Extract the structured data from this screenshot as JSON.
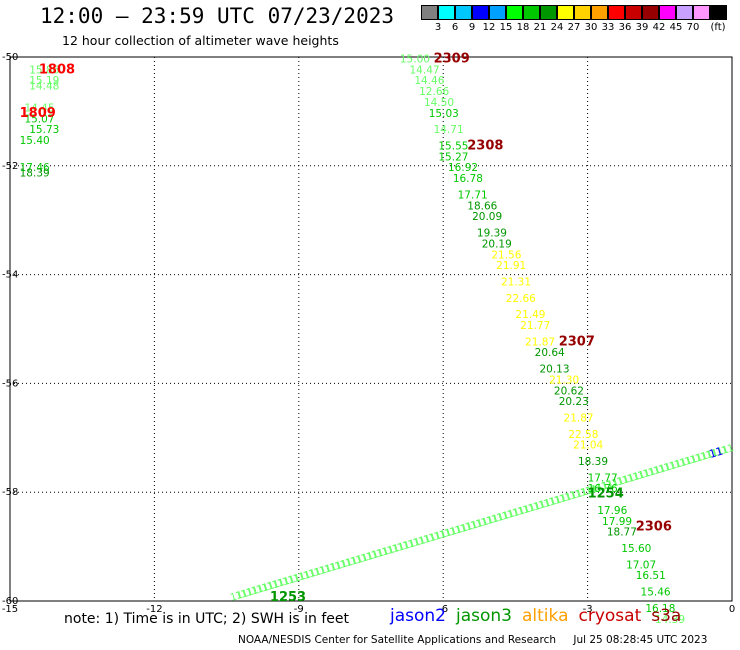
{
  "title": "12:00 — 23:59 UTC 07/23/2023",
  "subtitle": "12 hour collection of altimeter wave heights",
  "scale": {
    "colors": [
      "#808080",
      "#00ffff",
      "#00c8ff",
      "#0000ff",
      "#00a0ff",
      "#00ff00",
      "#00c800",
      "#009600",
      "#ffff00",
      "#ffd200",
      "#ffa000",
      "#ff0000",
      "#c80000",
      "#960000",
      "#ff00ff",
      "#c8a0ff",
      "#ff96ff",
      "#000000"
    ],
    "labels": [
      "3",
      "6",
      "9",
      "12",
      "15",
      "18",
      "21",
      "24",
      "27",
      "30",
      "33",
      "36",
      "39",
      "42",
      "45",
      "70"
    ],
    "unit": "(ft)"
  },
  "map": {
    "lon_ticks": [
      "-15",
      "-12",
      "-9",
      "-6",
      "-3",
      "0"
    ],
    "lat_ticks": [
      "-50",
      "-52",
      "-54",
      "-56",
      "-58",
      "-60"
    ],
    "xlim": [
      -15,
      0
    ],
    "ylim": [
      -60,
      -50
    ]
  },
  "tracks": {
    "nw_fragment": [
      {
        "lon": -14.6,
        "lat": -50.3,
        "v": "15.86",
        "c": "#66ff66"
      },
      {
        "lon": -14.6,
        "lat": -50.5,
        "v": "15.19",
        "c": "#66ff66"
      },
      {
        "lon": -14.6,
        "lat": -50.6,
        "v": "14.48",
        "c": "#66ff66"
      },
      {
        "lon": -14.7,
        "lat": -51.0,
        "v": "14.45",
        "c": "#66ff66"
      },
      {
        "lon": -14.7,
        "lat": -51.2,
        "v": "15.07",
        "c": "#00c800"
      },
      {
        "lon": -14.6,
        "lat": -51.4,
        "v": "15.73",
        "c": "#00c800"
      },
      {
        "lon": -14.8,
        "lat": -51.6,
        "v": "15.40",
        "c": "#00c800"
      },
      {
        "lon": -14.8,
        "lat": -52.1,
        "v": "17.46",
        "c": "#00c800"
      },
      {
        "lon": -14.8,
        "lat": -52.2,
        "v": "18.39",
        "c": "#009600"
      }
    ],
    "main": [
      {
        "lon": -6.9,
        "lat": -50.1,
        "v": "15.00",
        "c": "#66ff66"
      },
      {
        "lon": -6.7,
        "lat": -50.3,
        "v": "14.47",
        "c": "#66ff66"
      },
      {
        "lon": -6.6,
        "lat": -50.5,
        "v": "14.46",
        "c": "#66ff66"
      },
      {
        "lon": -6.5,
        "lat": -50.7,
        "v": "12.66",
        "c": "#66ff66"
      },
      {
        "lon": -6.4,
        "lat": -50.9,
        "v": "14.50",
        "c": "#66ff66"
      },
      {
        "lon": -6.3,
        "lat": -51.1,
        "v": "15.03",
        "c": "#00c800"
      },
      {
        "lon": -6.2,
        "lat": -51.4,
        "v": "14.71",
        "c": "#66ff66"
      },
      {
        "lon": -6.1,
        "lat": -51.7,
        "v": "15.55",
        "c": "#00c800"
      },
      {
        "lon": -6.1,
        "lat": -51.9,
        "v": "15.27",
        "c": "#00c800"
      },
      {
        "lon": -5.9,
        "lat": -52.1,
        "v": "16.92",
        "c": "#00c800"
      },
      {
        "lon": -5.8,
        "lat": -52.3,
        "v": "16.78",
        "c": "#00c800"
      },
      {
        "lon": -5.7,
        "lat": -52.6,
        "v": "17.71",
        "c": "#00c800"
      },
      {
        "lon": -5.5,
        "lat": -52.8,
        "v": "18.66",
        "c": "#009600"
      },
      {
        "lon": -5.4,
        "lat": -53.0,
        "v": "20.09",
        "c": "#009600"
      },
      {
        "lon": -5.3,
        "lat": -53.3,
        "v": "19.39",
        "c": "#009600"
      },
      {
        "lon": -5.2,
        "lat": -53.5,
        "v": "20.19",
        "c": "#009600"
      },
      {
        "lon": -5.0,
        "lat": -53.7,
        "v": "21.56",
        "c": "#ffff00"
      },
      {
        "lon": -4.9,
        "lat": -53.9,
        "v": "21.91",
        "c": "#ffff00"
      },
      {
        "lon": -4.8,
        "lat": -54.2,
        "v": "21.31",
        "c": "#ffff00"
      },
      {
        "lon": -4.7,
        "lat": -54.5,
        "v": "22.66",
        "c": "#ffff00"
      },
      {
        "lon": -4.5,
        "lat": -54.8,
        "v": "21.49",
        "c": "#ffff00"
      },
      {
        "lon": -4.4,
        "lat": -55.0,
        "v": "21.77",
        "c": "#ffff00"
      },
      {
        "lon": -4.3,
        "lat": -55.3,
        "v": "21.87",
        "c": "#ffff00"
      },
      {
        "lon": -4.1,
        "lat": -55.5,
        "v": "20.64",
        "c": "#009600"
      },
      {
        "lon": -4.0,
        "lat": -55.8,
        "v": "20.13",
        "c": "#009600"
      },
      {
        "lon": -3.8,
        "lat": -56.0,
        "v": "21.30",
        "c": "#ffff00"
      },
      {
        "lon": -3.7,
        "lat": -56.2,
        "v": "20.62",
        "c": "#009600"
      },
      {
        "lon": -3.6,
        "lat": -56.4,
        "v": "20.23",
        "c": "#009600"
      },
      {
        "lon": -3.5,
        "lat": -56.7,
        "v": "21.87",
        "c": "#ffff00"
      },
      {
        "lon": -3.4,
        "lat": -57.0,
        "v": "22.58",
        "c": "#ffff00"
      },
      {
        "lon": -3.3,
        "lat": -57.2,
        "v": "21.04",
        "c": "#ffff00"
      },
      {
        "lon": -3.2,
        "lat": -57.5,
        "v": "18.39",
        "c": "#009600"
      },
      {
        "lon": -3.0,
        "lat": -57.8,
        "v": "17.77",
        "c": "#00c800"
      },
      {
        "lon": -3.0,
        "lat": -58.0,
        "v": "16.76",
        "c": "#00c800"
      },
      {
        "lon": -2.8,
        "lat": -58.4,
        "v": "17.96",
        "c": "#00c800"
      },
      {
        "lon": -2.7,
        "lat": -58.6,
        "v": "17.99",
        "c": "#00c800"
      },
      {
        "lon": -2.6,
        "lat": -58.8,
        "v": "18.77",
        "c": "#009600"
      },
      {
        "lon": -2.3,
        "lat": -59.1,
        "v": "15.60",
        "c": "#00c800"
      },
      {
        "lon": -2.2,
        "lat": -59.4,
        "v": "17.07",
        "c": "#00c800"
      },
      {
        "lon": -2.0,
        "lat": -59.6,
        "v": "16.51",
        "c": "#00c800"
      },
      {
        "lon": -1.9,
        "lat": -59.9,
        "v": "15.46",
        "c": "#00c800"
      },
      {
        "lon": -1.8,
        "lat": -60.2,
        "v": "16.18",
        "c": "#00c800"
      },
      {
        "lon": -1.6,
        "lat": -60.4,
        "v": "14.39",
        "c": "#66ff66"
      }
    ]
  },
  "time_labels": [
    {
      "lon": -14.4,
      "lat": -50.3,
      "t": "1808",
      "c": "#ff0000"
    },
    {
      "lon": -14.8,
      "lat": -51.1,
      "t": "1809",
      "c": "#ff0000"
    },
    {
      "lon": -6.2,
      "lat": -50.1,
      "t": "2309",
      "c": "#960000"
    },
    {
      "lon": -5.5,
      "lat": -51.7,
      "t": "2308",
      "c": "#960000"
    },
    {
      "lon": -3.6,
      "lat": -55.3,
      "t": "2307",
      "c": "#960000"
    },
    {
      "lon": -2.0,
      "lat": -58.7,
      "t": "2306",
      "c": "#960000"
    },
    {
      "lon": -3.0,
      "lat": -58.1,
      "t": "1254",
      "c": "#009600"
    },
    {
      "lon": -9.6,
      "lat": -60.0,
      "t": "1253",
      "c": "#009600"
    }
  ],
  "oblique_track": {
    "start_lon": -10.4,
    "start_lat": -60.0,
    "end_lon": -0.2,
    "end_lat": -57.3,
    "text": "11",
    "c": "#66ff66",
    "end_text": "11",
    "end_c": "#0000ff"
  },
  "note": "note: 1) Time is in UTC; 2) SWH is in feet",
  "satellites": [
    {
      "name": "jason2",
      "c": "#0000ff"
    },
    {
      "name": "jason3",
      "c": "#009600"
    },
    {
      "name": "altika",
      "c": "#ffa000"
    },
    {
      "name": "cryosat",
      "c": "#c80000"
    },
    {
      "name": "s3a",
      "c": "#960000"
    }
  ],
  "credit": {
    "org": "NOAA/NESDIS Center for Satellite Applications and Research",
    "stamp": "Jul 25 08:28:45 UTC 2023"
  }
}
